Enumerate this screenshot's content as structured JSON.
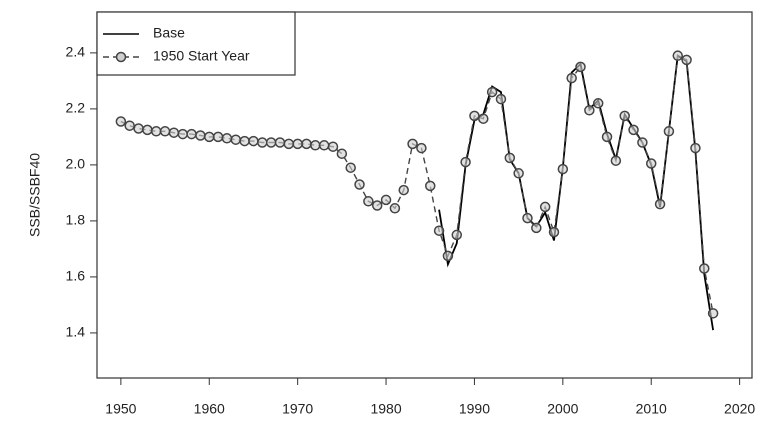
{
  "chart_data": {
    "type": "line",
    "y_label": "SSB/SSBF40",
    "x": [
      1950,
      1951,
      1952,
      1953,
      1954,
      1955,
      1956,
      1957,
      1958,
      1959,
      1960,
      1961,
      1962,
      1963,
      1964,
      1965,
      1966,
      1967,
      1968,
      1969,
      1970,
      1971,
      1972,
      1973,
      1974,
      1975,
      1976,
      1977,
      1978,
      1979,
      1980,
      1981,
      1982,
      1983,
      1984,
      1985,
      1986,
      1987,
      1988,
      1989,
      1990,
      1991,
      1992,
      1993,
      1994,
      1995,
      1996,
      1997,
      1998,
      1999,
      2000,
      2001,
      2002,
      2003,
      2004,
      2005,
      2006,
      2007,
      2008,
      2009,
      2010,
      2011,
      2012,
      2013,
      2014,
      2015,
      2016,
      2017
    ],
    "series": [
      {
        "name": "Base",
        "color": "#000000",
        "line_style": "solid",
        "marker": "none",
        "values": [
          null,
          null,
          null,
          null,
          null,
          null,
          null,
          null,
          null,
          null,
          null,
          null,
          null,
          null,
          null,
          null,
          null,
          null,
          null,
          null,
          null,
          null,
          null,
          null,
          null,
          null,
          null,
          null,
          null,
          null,
          null,
          null,
          null,
          null,
          null,
          null,
          1.84,
          1.645,
          1.72,
          2.0,
          2.16,
          2.18,
          2.28,
          2.26,
          2.02,
          1.97,
          1.81,
          1.78,
          1.83,
          1.73,
          1.99,
          2.33,
          2.36,
          2.2,
          2.23,
          2.11,
          2.02,
          2.18,
          2.13,
          2.08,
          2.0,
          1.85,
          2.12,
          2.39,
          2.37,
          2.05,
          1.61,
          1.41
        ]
      },
      {
        "name": "1950 Start Year",
        "color": "#444444",
        "line_style": "dashed",
        "marker": "circle",
        "values": [
          2.155,
          2.14,
          2.13,
          2.125,
          2.12,
          2.12,
          2.115,
          2.11,
          2.11,
          2.105,
          2.1,
          2.1,
          2.095,
          2.09,
          2.085,
          2.085,
          2.08,
          2.08,
          2.08,
          2.075,
          2.075,
          2.075,
          2.07,
          2.07,
          2.065,
          2.04,
          1.99,
          1.93,
          1.87,
          1.855,
          1.875,
          1.845,
          1.91,
          2.075,
          2.06,
          1.925,
          1.765,
          1.675,
          1.75,
          2.01,
          2.175,
          2.165,
          2.26,
          2.235,
          2.025,
          1.97,
          1.81,
          1.775,
          1.85,
          1.76,
          1.985,
          2.31,
          2.35,
          2.195,
          2.22,
          2.1,
          2.015,
          2.175,
          2.125,
          2.08,
          2.005,
          1.86,
          2.12,
          2.39,
          2.375,
          2.06,
          1.63,
          1.47
        ]
      }
    ],
    "xlim": [
      1947.3,
      2021.4
    ],
    "ylim": [
      1.239,
      2.546
    ],
    "xticks": [
      1950,
      1960,
      1970,
      1980,
      1990,
      2000,
      2010,
      2020
    ],
    "yticks": [
      1.4,
      1.6,
      1.8,
      {
        "value": 2,
        "label": "2.0"
      },
      2.2,
      2.4
    ],
    "legend": "top-left",
    "grid": false
  }
}
